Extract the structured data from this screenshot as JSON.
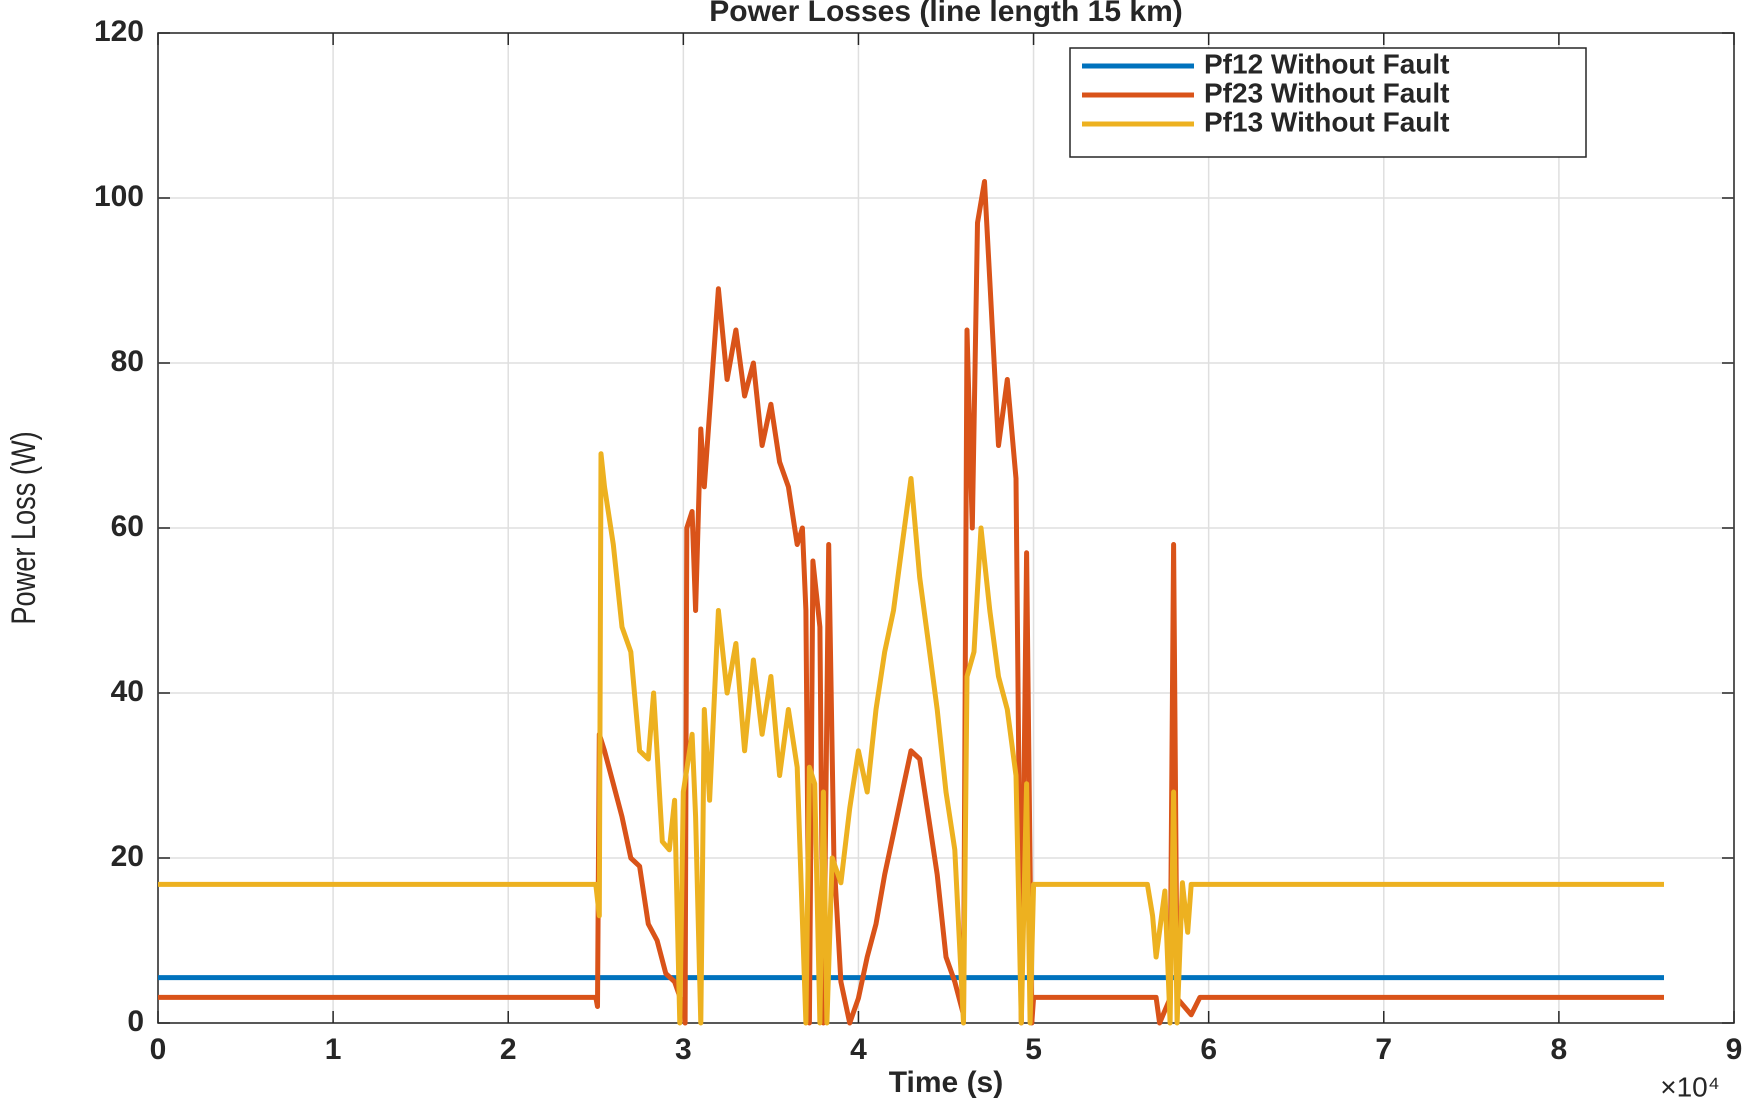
{
  "chart_data": {
    "type": "line",
    "title": "Power Losses (line length 15 km)",
    "xlabel": "Time (s)",
    "ylabel": "Power Loss (W)",
    "x_multiplier": "×10⁴",
    "xlim": [
      0,
      9
    ],
    "xticks": [
      0,
      1,
      2,
      3,
      4,
      5,
      6,
      7,
      8,
      9
    ],
    "ylim": [
      0,
      120
    ],
    "yticks": [
      0,
      20,
      40,
      60,
      80,
      100,
      120
    ],
    "grid": true,
    "legend": "upper right",
    "series": [
      {
        "name": "Pf12 Without Fault",
        "color": "#0072bd",
        "x": [
          0,
          8.6
        ],
        "values": [
          5.5,
          5.5
        ]
      },
      {
        "name": "Pf23 Without Fault",
        "color": "#d95319",
        "x": [
          0,
          2.5,
          2.51,
          2.52,
          2.55,
          2.6,
          2.65,
          2.7,
          2.75,
          2.8,
          2.85,
          2.9,
          2.95,
          3.0,
          3.01,
          3.02,
          3.05,
          3.07,
          3.1,
          3.12,
          3.15,
          3.2,
          3.25,
          3.3,
          3.35,
          3.4,
          3.45,
          3.5,
          3.55,
          3.6,
          3.65,
          3.68,
          3.7,
          3.72,
          3.74,
          3.78,
          3.8,
          3.83,
          3.86,
          3.9,
          3.95,
          4.0,
          4.05,
          4.1,
          4.15,
          4.2,
          4.25,
          4.3,
          4.35,
          4.4,
          4.45,
          4.5,
          4.55,
          4.6,
          4.62,
          4.65,
          4.68,
          4.72,
          4.75,
          4.8,
          4.85,
          4.9,
          4.93,
          4.96,
          4.99,
          5.0,
          5.7,
          5.72,
          5.78,
          5.8,
          5.82,
          5.9,
          5.95,
          8.6
        ],
        "values": [
          3.1,
          3.1,
          2,
          35,
          33,
          29,
          25,
          20,
          19,
          12,
          10,
          6,
          5,
          2,
          0,
          60,
          62,
          50,
          72,
          65,
          74,
          89,
          78,
          84,
          76,
          80,
          70,
          75,
          68,
          65,
          58,
          60,
          50,
          0,
          56,
          48,
          0,
          58,
          20,
          5,
          0,
          3,
          8,
          12,
          18,
          23,
          28,
          33,
          32,
          25,
          18,
          8,
          5,
          1,
          84,
          60,
          97,
          102,
          90,
          70,
          78,
          66,
          0,
          57,
          0,
          3.1,
          3.1,
          0,
          3,
          58,
          3,
          1,
          3.1,
          3.1
        ]
      },
      {
        "name": "Pf13 Without Fault",
        "color": "#edb120",
        "x": [
          0,
          2.5,
          2.52,
          2.53,
          2.55,
          2.6,
          2.65,
          2.7,
          2.75,
          2.8,
          2.83,
          2.88,
          2.92,
          2.95,
          2.98,
          3.0,
          3.05,
          3.07,
          3.1,
          3.12,
          3.15,
          3.2,
          3.25,
          3.3,
          3.35,
          3.4,
          3.45,
          3.5,
          3.55,
          3.6,
          3.65,
          3.7,
          3.72,
          3.75,
          3.78,
          3.8,
          3.82,
          3.85,
          3.9,
          3.95,
          4.0,
          4.05,
          4.1,
          4.15,
          4.2,
          4.25,
          4.3,
          4.35,
          4.4,
          4.45,
          4.5,
          4.55,
          4.6,
          4.62,
          4.66,
          4.7,
          4.75,
          4.8,
          4.85,
          4.9,
          4.93,
          4.96,
          4.98,
          5.0,
          5.65,
          5.68,
          5.7,
          5.75,
          5.78,
          5.8,
          5.82,
          5.85,
          5.88,
          5.9,
          8.6
        ],
        "values": [
          16.8,
          16.8,
          13,
          69,
          65,
          58,
          48,
          45,
          33,
          32,
          40,
          22,
          21,
          27,
          0,
          28,
          35,
          25,
          0,
          38,
          27,
          50,
          40,
          46,
          33,
          44,
          35,
          42,
          30,
          38,
          31,
          0,
          31,
          29,
          0,
          28,
          0,
          20,
          17,
          26,
          33,
          28,
          38,
          45,
          50,
          58,
          66,
          54,
          46,
          38,
          28,
          21,
          0,
          42,
          45,
          60,
          50,
          42,
          38,
          30,
          0,
          29,
          0,
          16.8,
          16.8,
          13,
          8,
          16,
          0,
          28,
          0,
          17,
          11,
          16.8,
          16.8
        ]
      }
    ]
  }
}
